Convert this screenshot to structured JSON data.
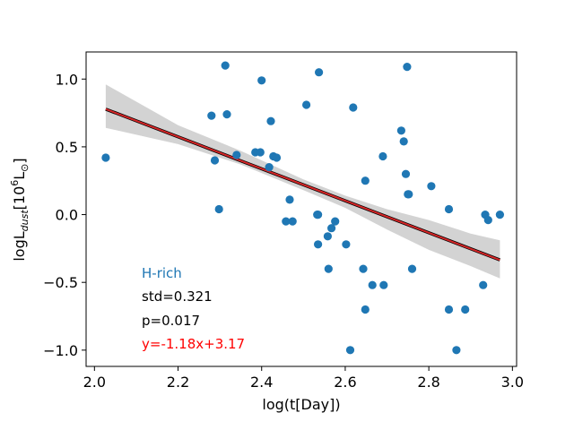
{
  "chart_data": {
    "type": "scatter",
    "xlabel": "log(t[Day])",
    "ylabel": {
      "main": "logL",
      "sub": "dust",
      "open": "[10",
      "sup": "6",
      "unit": "L",
      "unit_sub": "⊙",
      "close": "]"
    },
    "xlim": [
      1.98,
      3.01
    ],
    "ylim": [
      -1.12,
      1.2
    ],
    "x_ticks": [
      2.0,
      2.2,
      2.4,
      2.6,
      2.8,
      3.0
    ],
    "x_tick_labels": [
      "2.0",
      "2.2",
      "2.4",
      "2.6",
      "2.8",
      "3.0"
    ],
    "y_ticks": [
      1.0,
      0.5,
      0.0,
      -0.5,
      -1.0
    ],
    "y_tick_labels": [
      "1.0",
      "0.5",
      "0.0",
      "−0.5",
      "−1.0"
    ],
    "grid": false,
    "colors": {
      "points": "#1f77b4",
      "fit_line": "#d62728",
      "fit_line_outline": "#000000",
      "band": "#d3d3d3",
      "category_label": "#1f77b4",
      "equation": "#ff0000",
      "stats": "#000000"
    },
    "points": [
      {
        "x": 2.027,
        "y": 0.42
      },
      {
        "x": 2.28,
        "y": 0.73
      },
      {
        "x": 2.288,
        "y": 0.4
      },
      {
        "x": 2.298,
        "y": 0.04
      },
      {
        "x": 2.313,
        "y": 1.1
      },
      {
        "x": 2.317,
        "y": 0.74
      },
      {
        "x": 2.34,
        "y": 0.44
      },
      {
        "x": 2.385,
        "y": 0.46
      },
      {
        "x": 2.397,
        "y": 0.46
      },
      {
        "x": 2.4,
        "y": 0.99
      },
      {
        "x": 2.418,
        "y": 0.35
      },
      {
        "x": 2.422,
        "y": 0.69
      },
      {
        "x": 2.428,
        "y": 0.43
      },
      {
        "x": 2.436,
        "y": 0.42
      },
      {
        "x": 2.458,
        "y": -0.05
      },
      {
        "x": 2.467,
        "y": 0.11
      },
      {
        "x": 2.474,
        "y": -0.05
      },
      {
        "x": 2.507,
        "y": 0.81
      },
      {
        "x": 2.533,
        "y": 0.0
      },
      {
        "x": 2.535,
        "y": 0.0
      },
      {
        "x": 2.535,
        "y": -0.22
      },
      {
        "x": 2.537,
        "y": 1.05
      },
      {
        "x": 2.56,
        "y": -0.4
      },
      {
        "x": 2.558,
        "y": -0.16
      },
      {
        "x": 2.567,
        "y": -0.1
      },
      {
        "x": 2.576,
        "y": -0.05
      },
      {
        "x": 2.602,
        "y": -0.22
      },
      {
        "x": 2.612,
        "y": -1.0
      },
      {
        "x": 2.619,
        "y": 0.79
      },
      {
        "x": 2.643,
        "y": -0.4
      },
      {
        "x": 2.648,
        "y": 0.25
      },
      {
        "x": 2.648,
        "y": -0.7
      },
      {
        "x": 2.665,
        "y": -0.52
      },
      {
        "x": 2.69,
        "y": 0.43
      },
      {
        "x": 2.692,
        "y": -0.52
      },
      {
        "x": 2.734,
        "y": 0.62
      },
      {
        "x": 2.74,
        "y": 0.54
      },
      {
        "x": 2.745,
        "y": 0.3
      },
      {
        "x": 2.748,
        "y": 1.09
      },
      {
        "x": 2.75,
        "y": 0.15
      },
      {
        "x": 2.752,
        "y": 0.15
      },
      {
        "x": 2.76,
        "y": -0.4
      },
      {
        "x": 2.806,
        "y": 0.21
      },
      {
        "x": 2.848,
        "y": 0.04
      },
      {
        "x": 2.848,
        "y": -0.7
      },
      {
        "x": 2.866,
        "y": -1.0
      },
      {
        "x": 2.887,
        "y": -0.7
      },
      {
        "x": 2.93,
        "y": -0.52
      },
      {
        "x": 2.935,
        "y": 0.0
      },
      {
        "x": 2.942,
        "y": -0.04
      },
      {
        "x": 2.97,
        "y": 0.0
      }
    ],
    "fit": {
      "slope": -1.18,
      "intercept": 3.17,
      "x_range": [
        2.027,
        2.97
      ]
    },
    "confidence_band": [
      {
        "x": 2.027,
        "lo": 0.64,
        "hi": 0.96
      },
      {
        "x": 2.2,
        "lo": 0.52,
        "hi": 0.66
      },
      {
        "x": 2.35,
        "lo": 0.37,
        "hi": 0.47
      },
      {
        "x": 2.5,
        "lo": 0.18,
        "hi": 0.26
      },
      {
        "x": 2.6,
        "lo": 0.05,
        "hi": 0.14
      },
      {
        "x": 2.7,
        "lo": -0.11,
        "hi": 0.04
      },
      {
        "x": 2.8,
        "lo": -0.26,
        "hi": -0.04
      },
      {
        "x": 2.9,
        "lo": -0.38,
        "hi": -0.14
      },
      {
        "x": 2.97,
        "lo": -0.47,
        "hi": -0.19
      }
    ],
    "annotations": {
      "category": "H-rich",
      "std": "std=0.321",
      "p": "p=0.017",
      "equation": "y=-1.18x+3.17"
    }
  }
}
